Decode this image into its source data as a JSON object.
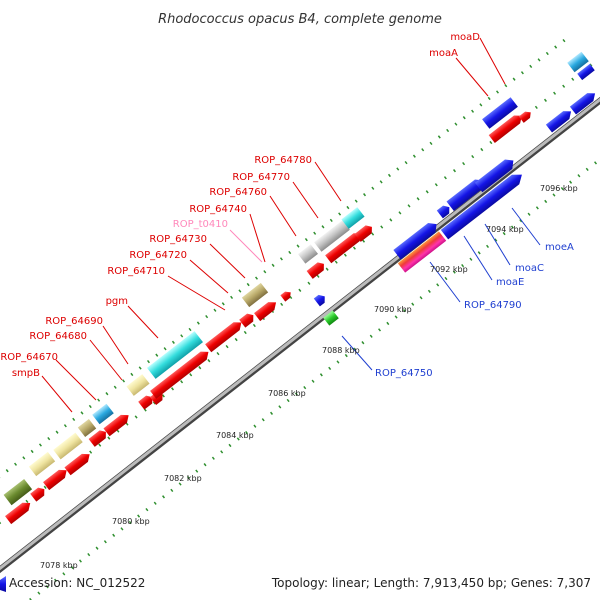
{
  "title": "Rhodococcus opacus B4, complete genome",
  "footer": {
    "accession": "Accession: NC_012522",
    "info": "Topology: linear; Length: 7,913,450 bp; Genes: 7,307"
  },
  "colors": {
    "strand": "#9a9a9a",
    "tick": "#2f8f2f",
    "label_red": "#dd0000",
    "label_blue": "#1f3fd0",
    "label_pink": "#ff88bb"
  },
  "ticks": [
    "7078 kbp",
    "7080 kbp",
    "7082 kbp",
    "7084 kbp",
    "7086 kbp",
    "7088 kbp",
    "7090 kbp",
    "7092 kbp",
    "7094 kbp",
    "7096 kbp"
  ],
  "labels": {
    "moaD": "moaD",
    "moaA": "moaA",
    "ROP_64780": "ROP_64780",
    "ROP_64770": "ROP_64770",
    "ROP_64760": "ROP_64760",
    "ROP_64740": "ROP_64740",
    "ROP_t0410": "ROP_t0410",
    "ROP_64730": "ROP_64730",
    "ROP_64720": "ROP_64720",
    "ROP_64710": "ROP_64710",
    "pgm": "pgm",
    "ROP_64690": "ROP_64690",
    "ROP_64680": "ROP_64680",
    "ROP_64670": "ROP_64670",
    "smpB": "smpB",
    "moeA": "moeA",
    "moaC": "moaC",
    "moaE": "moaE",
    "ROP_64790": "ROP_64790",
    "ROP_64750": "ROP_64750"
  }
}
